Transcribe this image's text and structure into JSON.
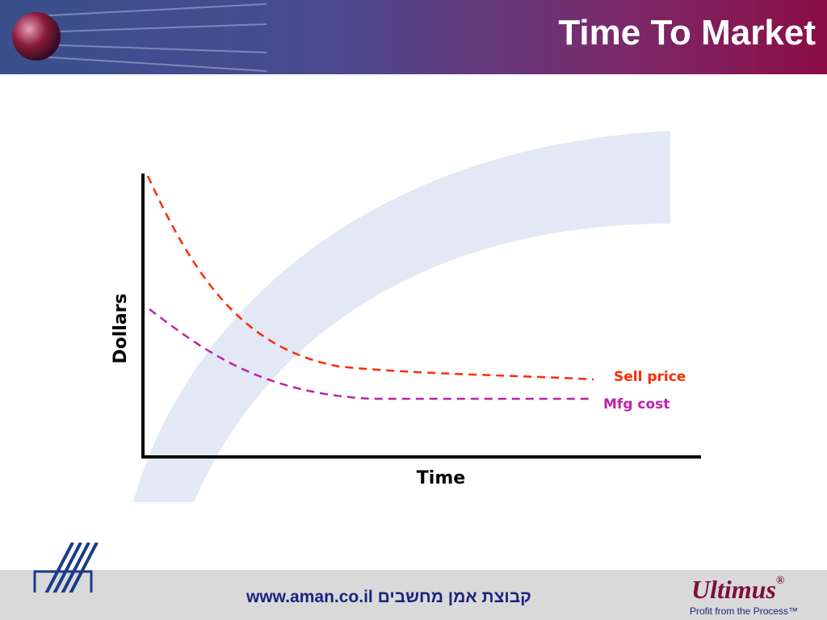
{
  "header": {
    "title": "Time To Market"
  },
  "diagram": {
    "y_label": "Dollars",
    "x_label": "Time",
    "curves": [
      {
        "label": "Sell price"
      },
      {
        "label": "Mfg cost"
      }
    ]
  },
  "footer": {
    "url": "www.aman.co.il",
    "company": "קבוצת אמן מחשבים",
    "brand": "Ultimus",
    "brand_mark": "®",
    "tagline": "Profit from the Process™"
  }
}
